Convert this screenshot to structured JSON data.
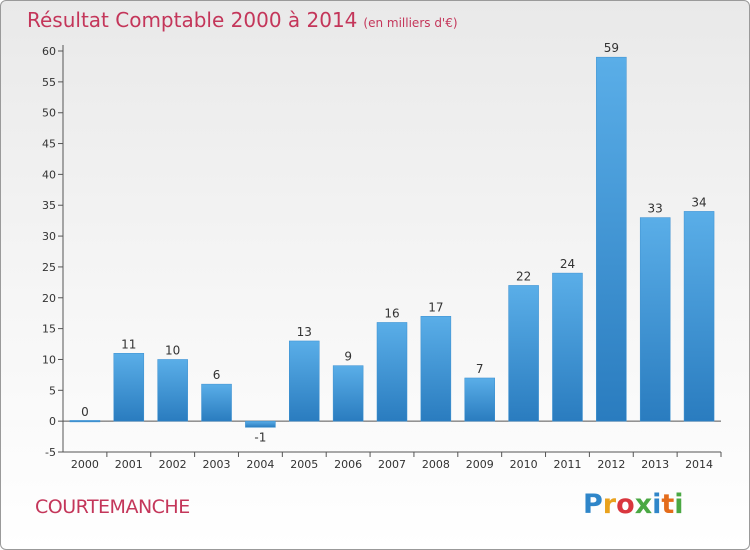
{
  "title": "Résultat Comptable 2000 à 2014",
  "subtitle": "(en milliers d'€)",
  "commune": "COURTEMANCHE",
  "logo": {
    "letters": [
      "P",
      "r",
      "o",
      "x",
      "i",
      "t",
      "i"
    ],
    "colors": [
      "#2f86c9",
      "#e9a21e",
      "#d9363e",
      "#4aa843",
      "#2f86c9",
      "#e46c1b",
      "#4aa843"
    ]
  },
  "chart_data": {
    "type": "bar",
    "title": "Résultat Comptable 2000 à 2014",
    "subtitle": "(en milliers d'€)",
    "categories": [
      "2000",
      "2001",
      "2002",
      "2003",
      "2004",
      "2005",
      "2006",
      "2007",
      "2008",
      "2009",
      "2010",
      "2011",
      "2012",
      "2013",
      "2014"
    ],
    "values": [
      0,
      11,
      10,
      6,
      -1,
      13,
      9,
      16,
      17,
      7,
      22,
      24,
      59,
      33,
      34
    ],
    "value_labels": [
      "0",
      "11",
      "10",
      "6",
      "-1",
      "13",
      "9",
      "16",
      "17",
      "7",
      "22",
      "24",
      "59",
      "33",
      "34"
    ],
    "ylim": [
      -5,
      60
    ],
    "yticks": [
      -5,
      0,
      5,
      10,
      15,
      20,
      25,
      30,
      35,
      40,
      45,
      50,
      55,
      60
    ],
    "ytick_labels": [
      "-5",
      "0",
      "5",
      "10",
      "15",
      "20",
      "25",
      "30",
      "35",
      "40",
      "45",
      "50",
      "55",
      "60"
    ],
    "xlabel": "",
    "ylabel": "",
    "grid": false,
    "bar_color": "#4a9fdf"
  }
}
